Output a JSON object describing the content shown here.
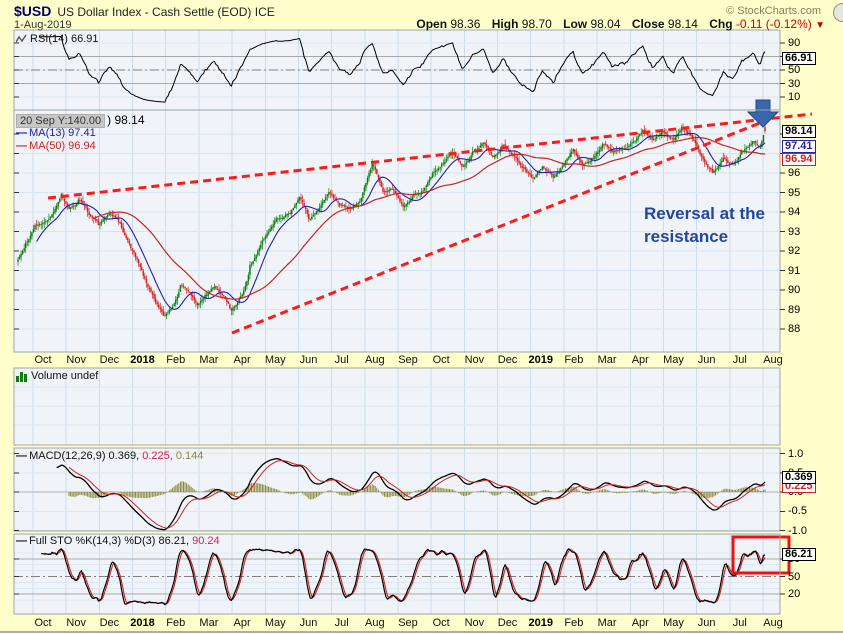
{
  "header": {
    "symbol": "$USD",
    "title": "US Dollar Index - Cash Settle (EOD) ICE",
    "date": "1-Aug-2019",
    "watermark": "© StockCharts.com",
    "open_label": "Open",
    "open": "98.36",
    "high_label": "High",
    "high": "98.70",
    "low_label": "Low",
    "low": "98.04",
    "close_label": "Close",
    "close": "98.14",
    "chg_label": "Chg",
    "chg": "-0.11 (-0.12%)",
    "chg_direction": "▼"
  },
  "tooltip": {
    "text": "20 Sep Y:140.00",
    "after": ") 98.14"
  },
  "legends": {
    "rsi": "RSI(14) 66.91",
    "ma13": "MA(13) 97.41",
    "ma50": "MA(50) 96.94",
    "volume": "Volume undef",
    "macd_name": "MACD(12,26,9)",
    "macd_v1": "0.369,",
    "macd_v2": "0.225,",
    "macd_v3": "0.144",
    "sto_name": "Full STO %K(14,3) %D(3)",
    "sto_v1": "86.21,",
    "sto_v2": "90.24",
    "dash": "—"
  },
  "boxes": {
    "rsi": "66.91",
    "price_close": "98.14",
    "ma13": "97.41",
    "ma50": "96.94",
    "macd1": "0.369",
    "macd2": "0.225",
    "sto": "86.21"
  },
  "annotation": {
    "line1": "Reversal at the",
    "line2": "resistance"
  },
  "colors": {
    "background": "#FFFFCC",
    "plot_bg": "#F0F4F9",
    "grid": "#CBDDEC",
    "candle_up": "#0F7D0F",
    "candle_down": "#D42222",
    "ma13": "#2222AA",
    "ma50": "#CC2222",
    "trendline": "#FF1A1A",
    "arrow": "#3A66AE",
    "annotation_text": "#24479E",
    "histogram": "#8A8A3C",
    "signal": "#CC2222",
    "chg_negative": "#CC0000"
  },
  "chart_data": {
    "type": "candlestick",
    "symbol": "$USD",
    "title": "$USD US Dollar Index - Cash Settle (EOD) ICE",
    "date": "1-Aug-2019",
    "last_ohlc": {
      "open": 98.36,
      "high": 98.7,
      "low": 98.04,
      "close": 98.14,
      "change": -0.11,
      "change_pct": "-0.12%"
    },
    "indicators": {
      "rsi14": 66.91,
      "ma13": 97.41,
      "ma50": 96.94,
      "volume": "undef",
      "macd_12_26_9": [
        0.369,
        0.225,
        0.144
      ],
      "full_sto_k14_3_d3": [
        86.21,
        90.24
      ]
    },
    "x_labels": [
      {
        "label": "Oct"
      },
      {
        "label": "Nov"
      },
      {
        "label": "Dec"
      },
      {
        "label": "2018",
        "bold": true
      },
      {
        "label": "Feb"
      },
      {
        "label": "Mar"
      },
      {
        "label": "Apr"
      },
      {
        "label": "May"
      },
      {
        "label": "Jun"
      },
      {
        "label": "Jul"
      },
      {
        "label": "Aug"
      },
      {
        "label": "Sep"
      },
      {
        "label": "Oct"
      },
      {
        "label": "Nov"
      },
      {
        "label": "Dec"
      },
      {
        "label": "2019",
        "bold": true
      },
      {
        "label": "Feb"
      },
      {
        "label": "Mar"
      },
      {
        "label": "Apr"
      },
      {
        "label": "May"
      },
      {
        "label": "Jun"
      },
      {
        "label": "Jul"
      },
      {
        "label": "Aug"
      }
    ],
    "price_ticks": [
      "98",
      "97",
      "96",
      "95",
      "94",
      "93",
      "92",
      "91",
      "90",
      "89",
      "88"
    ],
    "rsi_ticks": [
      90,
      70,
      50,
      30,
      10
    ],
    "macd_ticks": [
      {
        "v": 1,
        "label": "1.0"
      },
      {
        "v": 0.5,
        "label": "0.5"
      },
      {
        "v": 0,
        "label": "0.0"
      },
      {
        "v": -0.5,
        "label": "-0.5"
      },
      {
        "v": -1,
        "label": "-1.0"
      }
    ],
    "sto_ticks": [
      80,
      50,
      20
    ],
    "price_ylim": [
      87,
      99
    ],
    "rsi_range": [
      0,
      100
    ],
    "macd_ylim": [
      -1.2,
      1.2
    ],
    "sto_range": [
      0,
      100
    ],
    "close_anchors": [
      [
        -0.25,
        91.6
      ],
      [
        0,
        92.5
      ],
      [
        0.3,
        93.3
      ],
      [
        0.7,
        93.6
      ],
      [
        1.05,
        94.85
      ],
      [
        1.3,
        94.1
      ],
      [
        1.6,
        94.6
      ],
      [
        1.9,
        93.8
      ],
      [
        2.2,
        93.3
      ],
      [
        2.5,
        93.9
      ],
      [
        2.8,
        93.4
      ],
      [
        3.0,
        92.6
      ],
      [
        3.3,
        91.6
      ],
      [
        3.6,
        90.3
      ],
      [
        3.9,
        89.3
      ],
      [
        4.15,
        88.6
      ],
      [
        4.4,
        89.2
      ],
      [
        4.65,
        90.2
      ],
      [
        4.9,
        89.9
      ],
      [
        5.15,
        89.3
      ],
      [
        5.4,
        89.8
      ],
      [
        5.65,
        90.2
      ],
      [
        5.9,
        89.7
      ],
      [
        6.15,
        88.9
      ],
      [
        6.45,
        89.6
      ],
      [
        6.75,
        91.2
      ],
      [
        7.1,
        92.4
      ],
      [
        7.5,
        93.6
      ],
      [
        7.9,
        93.9
      ],
      [
        8.2,
        94.7
      ],
      [
        8.5,
        93.6
      ],
      [
        8.8,
        94.2
      ],
      [
        9.1,
        95.0
      ],
      [
        9.4,
        94.3
      ],
      [
        9.7,
        94.1
      ],
      [
        10.0,
        94.6
      ],
      [
        10.4,
        96.5
      ],
      [
        10.7,
        95.0
      ],
      [
        11.0,
        95.2
      ],
      [
        11.3,
        94.3
      ],
      [
        11.6,
        94.8
      ],
      [
        11.9,
        95.1
      ],
      [
        12.2,
        95.9
      ],
      [
        12.5,
        96.4
      ],
      [
        12.8,
        97.0
      ],
      [
        13.1,
        96.3
      ],
      [
        13.4,
        97.1
      ],
      [
        13.7,
        97.5
      ],
      [
        14.0,
        96.8
      ],
      [
        14.3,
        97.4
      ],
      [
        14.6,
        96.9
      ],
      [
        14.9,
        96.2
      ],
      [
        15.2,
        95.7
      ],
      [
        15.5,
        96.4
      ],
      [
        15.8,
        95.8
      ],
      [
        16.1,
        96.4
      ],
      [
        16.4,
        97.2
      ],
      [
        16.7,
        96.4
      ],
      [
        17.0,
        96.7
      ],
      [
        17.3,
        97.4
      ],
      [
        17.6,
        96.9
      ],
      [
        17.9,
        97.2
      ],
      [
        18.2,
        97.5
      ],
      [
        18.5,
        98.1
      ],
      [
        18.8,
        97.7
      ],
      [
        19.1,
        98.0
      ],
      [
        19.4,
        97.7
      ],
      [
        19.7,
        98.2
      ],
      [
        20.0,
        97.6
      ],
      [
        20.3,
        96.6
      ],
      [
        20.6,
        96.0
      ],
      [
        20.9,
        96.8
      ],
      [
        21.2,
        96.4
      ],
      [
        21.5,
        97.2
      ],
      [
        21.8,
        97.7
      ],
      [
        22.0,
        97.4
      ],
      [
        22.15,
        98.14
      ]
    ],
    "seed": 20190801,
    "n_days": 484
  }
}
